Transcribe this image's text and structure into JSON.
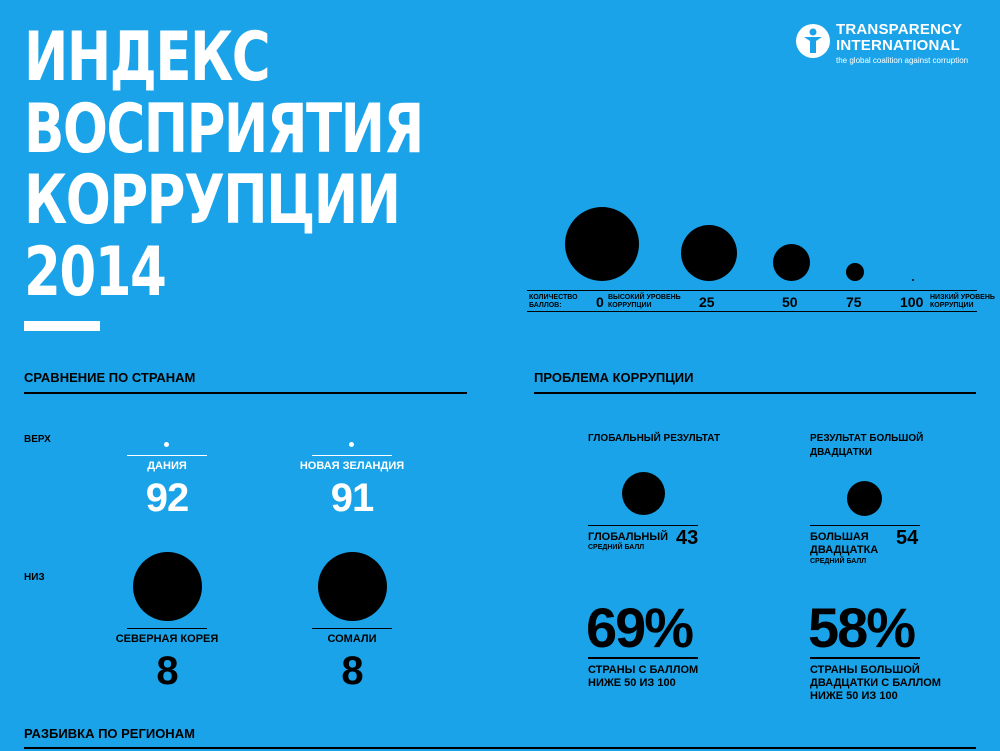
{
  "title": {
    "line1": "ИНДЕКС",
    "line2": "ВОСПРИЯТИЯ",
    "line3": "КОРРУПЦИИ",
    "year": "2014"
  },
  "logo": {
    "line1": "TRANSPARENCY",
    "line2": "INTERNATIONAL",
    "tagline": "the global coalition against corruption"
  },
  "scale": {
    "label_line1": "КОЛИЧЕСТВО",
    "label_line2": "БАЛЛОВ:",
    "high_line1": "ВЫСОКИЙ УРОВЕНЬ",
    "high_line2": "КОРРУПЦИИ",
    "low_line1": "НИЗКИЙ УРОВЕНЬ",
    "low_line2": "КОРРУПЦИИ",
    "points": [
      "0",
      "25",
      "50",
      "75",
      "100"
    ]
  },
  "comparison": {
    "heading": "СРАВНЕНИЕ ПО СТРАНАМ",
    "top_label": "ВЕРХ",
    "bottom_label": "НИЗ",
    "top": [
      {
        "name": "ДАНИЯ",
        "score": "92"
      },
      {
        "name": "НОВАЯ ЗЕЛАНДИЯ",
        "score": "91"
      }
    ],
    "bottom": [
      {
        "name": "СЕВЕРНАЯ КОРЕЯ",
        "score": "8"
      },
      {
        "name": "СОМАЛИ",
        "score": "8"
      }
    ]
  },
  "problem": {
    "heading": "ПРОБЛЕМА КОРРУПЦИИ",
    "global_title": "ГЛОБАЛЬНЫЙ РЕЗУЛЬТАТ",
    "g20_title_line1": "РЕЗУЛЬТАТ БОЛЬШОЙ",
    "g20_title_line2": "ДВАДЦАТКИ",
    "global_label": "ГЛОБАЛЬНЫЙ",
    "global_sub": "СРЕДНИЙ БАЛЛ",
    "global_value": "43",
    "g20_label_line1": "БОЛЬШАЯ",
    "g20_label_line2": "ДВАДЦАТКА",
    "g20_sub": "СРЕДНИЙ БАЛЛ",
    "g20_value": "54",
    "global_pct": "69%",
    "global_pct_line1": "СТРАНЫ С БАЛЛОМ",
    "global_pct_line2": "НИЖЕ 50 ИЗ 100",
    "g20_pct": "58%",
    "g20_pct_line1": "СТРАНЫ БОЛЬШОЙ",
    "g20_pct_line2": "ДВАДЦАТКИ С БАЛЛОМ",
    "g20_pct_line3": "НИЖЕ 50 ИЗ 100"
  },
  "regions": {
    "heading": "РАЗБИВКА ПО РЕГИОНАМ"
  },
  "colors": {
    "background": "#1aa3e8",
    "text_dark": "#000000",
    "text_light": "#ffffff"
  }
}
